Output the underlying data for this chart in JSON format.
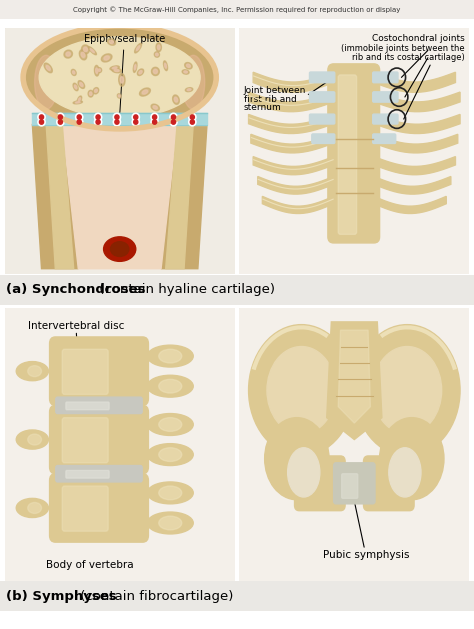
{
  "copyright_text": "Copyright © The McGraw-Hill Companies, Inc. Permission required for reproduction or display",
  "background_color": "#ffffff",
  "figure_size": [
    4.74,
    6.29
  ],
  "dpi": 100,
  "panel_a_label": "(a) Synchondroses",
  "panel_a_sublabel": " (contain hyaline cartilage)",
  "panel_b_label": "(b) Symphyses",
  "panel_b_sublabel": " (contain fibrocartilage)",
  "top_left_label": "Epiphyseal plate",
  "top_right_label1": "Costochondral joints",
  "top_right_label2": "(immobile joints between the",
  "top_right_label3": "rib and its costal cartilage)",
  "top_right_label4": "Joint between",
  "top_right_label5": "first rib and",
  "top_right_label6": "sternum",
  "bottom_left_label1": "Intervertebral disc",
  "bottom_left_label2": "Body of vertebra",
  "bottom_right_label": "Pubic symphysis",
  "bone_color": "#ddc992",
  "bone_light": "#ede0b8",
  "bone_dark": "#c8aa6e",
  "bone_shadow": "#b89858",
  "cartilage_color": "#a8d8dc",
  "marrow_color": "#e8c4a8",
  "marrow_dark": "#d4a080",
  "disc_color": "#c8c8c0",
  "disc_light": "#e0e0d8",
  "red_spot": "#aa1800",
  "bg_gradient": "#f0ece8",
  "panel_bg": "#f8f4ee"
}
